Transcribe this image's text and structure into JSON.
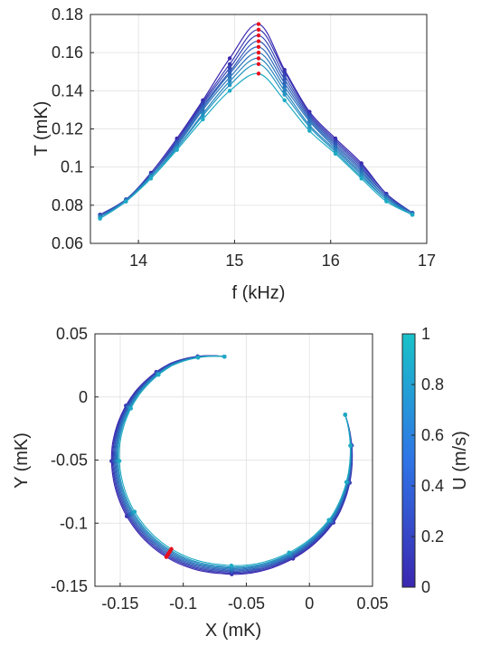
{
  "colors": {
    "low": "#3b27b0",
    "high": "#19c2c8",
    "peak_marker": "#e8101e"
  },
  "chart_data": [
    {
      "type": "line",
      "xlabel": "f (kHz)",
      "ylabel": "T (mK)",
      "xlim": [
        13.5,
        17
      ],
      "ylim": [
        0.06,
        0.18
      ],
      "xticks": [
        "14",
        "15",
        "16",
        "17"
      ],
      "yticks": [
        "0.06",
        "0.08",
        "0.1",
        "0.12",
        "0.14",
        "0.16",
        "0.18"
      ],
      "grid": true,
      "x": [
        13.6,
        13.87,
        14.13,
        14.4,
        14.67,
        14.95,
        15.25,
        15.52,
        15.78,
        16.05,
        16.32,
        16.58,
        16.85
      ],
      "series": [
        {
          "U": 0.0,
          "values": [
            0.075,
            0.083,
            0.097,
            0.115,
            0.135,
            0.157,
            0.175,
            0.151,
            0.129,
            0.115,
            0.102,
            0.086,
            0.076
          ]
        },
        {
          "U": 0.1,
          "values": [
            0.075,
            0.083,
            0.096,
            0.114,
            0.134,
            0.154,
            0.172,
            0.15,
            0.128,
            0.114,
            0.101,
            0.086,
            0.076
          ]
        },
        {
          "U": 0.2,
          "values": [
            0.075,
            0.083,
            0.096,
            0.113,
            0.133,
            0.152,
            0.169,
            0.148,
            0.127,
            0.113,
            0.1,
            0.085,
            0.076
          ]
        },
        {
          "U": 0.3,
          "values": [
            0.074,
            0.083,
            0.096,
            0.113,
            0.132,
            0.15,
            0.166,
            0.146,
            0.126,
            0.112,
            0.099,
            0.085,
            0.076
          ]
        },
        {
          "U": 0.4,
          "values": [
            0.074,
            0.083,
            0.096,
            0.112,
            0.131,
            0.149,
            0.163,
            0.144,
            0.125,
            0.111,
            0.098,
            0.084,
            0.076
          ]
        },
        {
          "U": 0.5,
          "values": [
            0.074,
            0.082,
            0.095,
            0.111,
            0.13,
            0.147,
            0.16,
            0.142,
            0.124,
            0.11,
            0.097,
            0.084,
            0.075
          ]
        },
        {
          "U": 0.6,
          "values": [
            0.074,
            0.082,
            0.095,
            0.11,
            0.128,
            0.145,
            0.157,
            0.14,
            0.122,
            0.109,
            0.096,
            0.083,
            0.075
          ]
        },
        {
          "U": 0.7,
          "values": [
            0.073,
            0.082,
            0.095,
            0.11,
            0.127,
            0.143,
            0.154,
            0.138,
            0.121,
            0.108,
            0.095,
            0.083,
            0.075
          ]
        },
        {
          "U": 0.85,
          "values": [
            0.073,
            0.082,
            0.094,
            0.109,
            0.125,
            0.14,
            0.149,
            0.135,
            0.119,
            0.107,
            0.094,
            0.082,
            0.075
          ]
        }
      ],
      "peak_index": 6
    },
    {
      "type": "line",
      "xlabel": "X (mK)",
      "ylabel": "Y (mK)",
      "xlim": [
        -0.17,
        0.05
      ],
      "ylim": [
        -0.15,
        0.05
      ],
      "xticks": [
        "-0.15",
        "-0.1",
        "-0.05",
        "0",
        "0.05"
      ],
      "yticks": [
        "-0.15",
        "-0.1",
        "-0.05",
        "0",
        "0.05"
      ],
      "grid": true,
      "curve_param": {
        "center": [
          -0.065,
          -0.05
        ],
        "a_start": 1.6,
        "a_end": 6.65,
        "radius_profile": [
          [
            1.6,
            0.082
          ],
          [
            2.1,
            0.089
          ],
          [
            2.5,
            0.091
          ],
          [
            3.0,
            0.092
          ],
          [
            4.0,
            0.091
          ],
          [
            4.65,
            0.09
          ],
          [
            5.2,
            0.093
          ],
          [
            5.8,
            0.098
          ],
          [
            6.3,
            0.099
          ],
          [
            6.65,
            0.1
          ]
        ]
      },
      "series_shrink": [
        0.0,
        0.011,
        0.022,
        0.033,
        0.044,
        0.055,
        0.066,
        0.077,
        0.092
      ],
      "series_U": [
        0.0,
        0.1,
        0.2,
        0.3,
        0.4,
        0.5,
        0.6,
        0.7,
        0.85
      ],
      "marker_angles": [
        1.6,
        1.85,
        2.25,
        2.65,
        3.15,
        3.65,
        4.15,
        4.75,
        5.3,
        5.75,
        6.1,
        6.4,
        6.65
      ],
      "peak_marker_angle": 4.15
    }
  ],
  "colorbar": {
    "label": "U (m/s)",
    "ticks": [
      "0",
      "0.2",
      "0.4",
      "0.6",
      "0.8",
      "1"
    ],
    "range": [
      0,
      1
    ]
  }
}
